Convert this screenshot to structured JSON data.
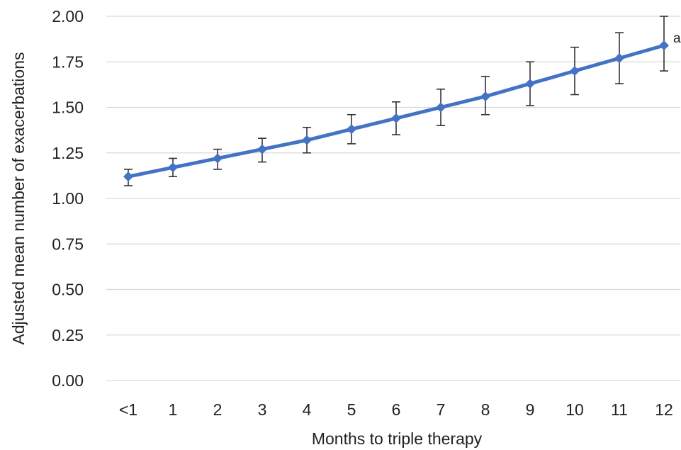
{
  "chart_data": {
    "type": "line",
    "title": "",
    "xlabel": "Months to triple therapy",
    "ylabel": "Adjusted mean number of exacerbations",
    "categories": [
      "<1",
      "1",
      "2",
      "3",
      "4",
      "5",
      "6",
      "7",
      "8",
      "9",
      "10",
      "11",
      "12"
    ],
    "series": [
      {
        "values": [
          1.12,
          1.17,
          1.22,
          1.27,
          1.32,
          1.38,
          1.44,
          1.5,
          1.56,
          1.63,
          1.7,
          1.77,
          1.84
        ],
        "error_lower": [
          1.07,
          1.12,
          1.16,
          1.2,
          1.25,
          1.3,
          1.35,
          1.4,
          1.46,
          1.51,
          1.57,
          1.63,
          1.7
        ],
        "error_upper": [
          1.16,
          1.22,
          1.27,
          1.33,
          1.39,
          1.46,
          1.53,
          1.6,
          1.67,
          1.75,
          1.83,
          1.91,
          2.0
        ],
        "color": "#4472c4",
        "marker": "diamond"
      }
    ],
    "ylim": [
      0,
      2
    ],
    "yticks": [
      "0.00",
      "0.25",
      "0.50",
      "0.75",
      "1.00",
      "1.25",
      "1.50",
      "1.75",
      "2.00"
    ],
    "grid": true,
    "legend": "none",
    "annotations": [
      {
        "text": "a",
        "category": "12"
      }
    ]
  }
}
